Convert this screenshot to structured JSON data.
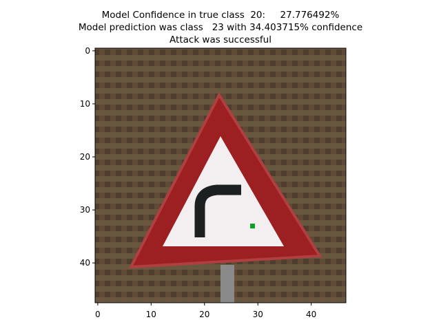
{
  "chart_data": {
    "type": "image",
    "title": [
      "Model Confidence in true class  20:     27.776492%",
      "Model prediction was class   23 with 34.403715% confidence",
      "Attack was successful"
    ],
    "xlim": [
      -0.5,
      46.5
    ],
    "ylim": [
      47.5,
      -0.5
    ],
    "xticks": [
      0,
      10,
      20,
      30,
      40
    ],
    "yticks": [
      0,
      10,
      20,
      30,
      40
    ]
  }
}
